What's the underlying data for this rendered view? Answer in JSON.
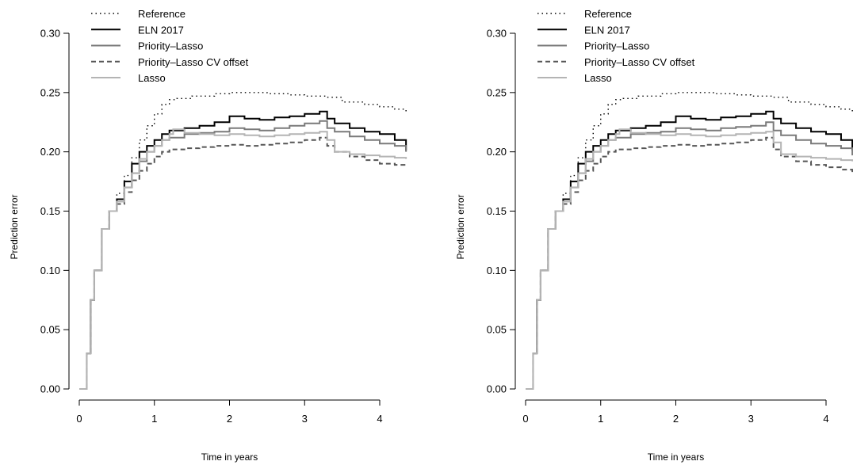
{
  "chart_data": [
    {
      "type": "line",
      "xlabel": "Time in years",
      "ylabel": "Prediction error",
      "xlim": [
        0,
        4.35
      ],
      "ylim": [
        0,
        0.3
      ],
      "xticks": [
        "0",
        "1",
        "2",
        "3",
        "4"
      ],
      "yticks": [
        "0.00",
        "0.05",
        "0.10",
        "0.15",
        "0.20",
        "0.25",
        "0.30"
      ],
      "grid": false,
      "legend_position": "top-left",
      "series": [
        {
          "name": "Reference",
          "color": "#000000",
          "style": "dotted",
          "x": [
            0,
            0.08,
            0.1,
            0.15,
            0.2,
            0.3,
            0.4,
            0.5,
            0.6,
            0.7,
            0.8,
            0.9,
            1.0,
            1.1,
            1.2,
            1.3,
            1.5,
            1.8,
            2.0,
            2.2,
            2.5,
            2.8,
            3.0,
            3.2,
            3.3,
            3.5,
            3.8,
            4.0,
            4.2,
            4.35
          ],
          "y": [
            0,
            0,
            0.03,
            0.075,
            0.1,
            0.135,
            0.15,
            0.165,
            0.18,
            0.195,
            0.21,
            0.222,
            0.232,
            0.24,
            0.244,
            0.245,
            0.247,
            0.249,
            0.25,
            0.25,
            0.249,
            0.248,
            0.247,
            0.247,
            0.246,
            0.242,
            0.24,
            0.238,
            0.236,
            0.233
          ]
        },
        {
          "name": "ELN 2017",
          "color": "#000000",
          "style": "solid",
          "x": [
            0,
            0.08,
            0.1,
            0.15,
            0.2,
            0.3,
            0.4,
            0.5,
            0.6,
            0.7,
            0.8,
            0.9,
            1.0,
            1.1,
            1.2,
            1.4,
            1.6,
            1.8,
            2.0,
            2.2,
            2.4,
            2.6,
            2.8,
            3.0,
            3.2,
            3.3,
            3.4,
            3.6,
            3.8,
            4.0,
            4.2,
            4.35
          ],
          "y": [
            0,
            0,
            0.03,
            0.075,
            0.1,
            0.135,
            0.15,
            0.16,
            0.175,
            0.19,
            0.2,
            0.205,
            0.21,
            0.215,
            0.218,
            0.22,
            0.222,
            0.225,
            0.23,
            0.228,
            0.227,
            0.229,
            0.23,
            0.232,
            0.234,
            0.228,
            0.224,
            0.22,
            0.217,
            0.215,
            0.21,
            0.201
          ]
        },
        {
          "name": "Priority–Lasso",
          "color": "#7a7a7a",
          "style": "solid",
          "x": [
            0,
            0.08,
            0.1,
            0.15,
            0.2,
            0.3,
            0.4,
            0.5,
            0.6,
            0.7,
            0.8,
            0.9,
            1.0,
            1.1,
            1.2,
            1.4,
            1.6,
            1.8,
            2.0,
            2.2,
            2.4,
            2.6,
            2.8,
            3.0,
            3.2,
            3.3,
            3.4,
            3.6,
            3.8,
            4.0,
            4.2,
            4.35
          ],
          "y": [
            0,
            0,
            0.03,
            0.075,
            0.1,
            0.135,
            0.15,
            0.158,
            0.17,
            0.182,
            0.192,
            0.2,
            0.205,
            0.21,
            0.212,
            0.215,
            0.216,
            0.217,
            0.22,
            0.219,
            0.218,
            0.22,
            0.222,
            0.224,
            0.226,
            0.22,
            0.217,
            0.213,
            0.21,
            0.207,
            0.205,
            0.2
          ]
        },
        {
          "name": "Priority–Lasso CV offset",
          "color": "#555555",
          "style": "dashed",
          "x": [
            0,
            0.08,
            0.1,
            0.15,
            0.2,
            0.3,
            0.4,
            0.5,
            0.6,
            0.7,
            0.8,
            0.9,
            1.0,
            1.1,
            1.2,
            1.4,
            1.6,
            1.8,
            2.0,
            2.2,
            2.4,
            2.6,
            2.8,
            3.0,
            3.2,
            3.3,
            3.4,
            3.6,
            3.8,
            4.0,
            4.2,
            4.35
          ],
          "y": [
            0,
            0,
            0.03,
            0.075,
            0.1,
            0.135,
            0.15,
            0.156,
            0.166,
            0.176,
            0.184,
            0.19,
            0.196,
            0.2,
            0.202,
            0.203,
            0.204,
            0.205,
            0.206,
            0.205,
            0.206,
            0.207,
            0.208,
            0.21,
            0.212,
            0.205,
            0.2,
            0.196,
            0.193,
            0.19,
            0.189,
            0.187
          ]
        },
        {
          "name": "Lasso",
          "color": "#b4b4b4",
          "style": "solid",
          "x": [
            0,
            0.08,
            0.1,
            0.15,
            0.2,
            0.3,
            0.4,
            0.5,
            0.6,
            0.7,
            0.8,
            0.9,
            1.0,
            1.1,
            1.2,
            1.25,
            1.4,
            1.6,
            1.8,
            2.0,
            2.2,
            2.4,
            2.6,
            2.8,
            3.0,
            3.2,
            3.3,
            3.4,
            3.6,
            3.8,
            4.0,
            4.2,
            4.35
          ],
          "y": [
            0,
            0,
            0.03,
            0.075,
            0.1,
            0.135,
            0.15,
            0.158,
            0.17,
            0.182,
            0.194,
            0.2,
            0.205,
            0.21,
            0.215,
            0.219,
            0.216,
            0.215,
            0.214,
            0.215,
            0.214,
            0.213,
            0.214,
            0.215,
            0.216,
            0.217,
            0.21,
            0.2,
            0.198,
            0.197,
            0.196,
            0.195,
            0.194
          ]
        }
      ]
    },
    {
      "type": "line",
      "xlabel": "Time in years",
      "ylabel": "Prediction error",
      "xlim": [
        0,
        4.35
      ],
      "ylim": [
        0,
        0.3
      ],
      "xticks": [
        "0",
        "1",
        "2",
        "3",
        "4"
      ],
      "yticks": [
        "0.00",
        "0.05",
        "0.10",
        "0.15",
        "0.20",
        "0.25",
        "0.30"
      ],
      "grid": false,
      "legend_position": "top-left",
      "series": [
        {
          "name": "Reference",
          "color": "#000000",
          "style": "dotted",
          "x": [
            0,
            0.08,
            0.1,
            0.15,
            0.2,
            0.3,
            0.4,
            0.5,
            0.6,
            0.7,
            0.8,
            0.9,
            1.0,
            1.1,
            1.2,
            1.3,
            1.5,
            1.8,
            2.0,
            2.2,
            2.5,
            2.8,
            3.0,
            3.2,
            3.3,
            3.5,
            3.8,
            4.0,
            4.2,
            4.35
          ],
          "y": [
            0,
            0,
            0.03,
            0.075,
            0.1,
            0.135,
            0.15,
            0.165,
            0.18,
            0.195,
            0.21,
            0.222,
            0.232,
            0.24,
            0.244,
            0.245,
            0.247,
            0.249,
            0.25,
            0.25,
            0.249,
            0.248,
            0.247,
            0.247,
            0.246,
            0.242,
            0.24,
            0.238,
            0.236,
            0.233
          ]
        },
        {
          "name": "ELN 2017",
          "color": "#000000",
          "style": "solid",
          "x": [
            0,
            0.08,
            0.1,
            0.15,
            0.2,
            0.3,
            0.4,
            0.5,
            0.6,
            0.7,
            0.8,
            0.9,
            1.0,
            1.1,
            1.2,
            1.4,
            1.6,
            1.8,
            2.0,
            2.2,
            2.4,
            2.6,
            2.8,
            3.0,
            3.2,
            3.3,
            3.4,
            3.6,
            3.8,
            4.0,
            4.2,
            4.35
          ],
          "y": [
            0,
            0,
            0.03,
            0.075,
            0.1,
            0.135,
            0.15,
            0.16,
            0.175,
            0.19,
            0.2,
            0.205,
            0.21,
            0.215,
            0.218,
            0.22,
            0.222,
            0.225,
            0.23,
            0.228,
            0.227,
            0.229,
            0.23,
            0.232,
            0.234,
            0.228,
            0.224,
            0.22,
            0.217,
            0.215,
            0.21,
            0.201
          ]
        },
        {
          "name": "Priority–Lasso",
          "color": "#7a7a7a",
          "style": "solid",
          "x": [
            0,
            0.08,
            0.1,
            0.15,
            0.2,
            0.3,
            0.4,
            0.5,
            0.6,
            0.7,
            0.8,
            0.9,
            1.0,
            1.1,
            1.2,
            1.4,
            1.6,
            1.8,
            2.0,
            2.2,
            2.4,
            2.6,
            2.8,
            3.0,
            3.2,
            3.3,
            3.4,
            3.6,
            3.8,
            4.0,
            4.2,
            4.35
          ],
          "y": [
            0,
            0,
            0.03,
            0.075,
            0.1,
            0.135,
            0.15,
            0.158,
            0.17,
            0.182,
            0.192,
            0.2,
            0.205,
            0.21,
            0.212,
            0.215,
            0.216,
            0.217,
            0.22,
            0.219,
            0.218,
            0.22,
            0.221,
            0.222,
            0.225,
            0.218,
            0.214,
            0.21,
            0.207,
            0.205,
            0.203,
            0.197
          ]
        },
        {
          "name": "Priority–Lasso CV offset",
          "color": "#555555",
          "style": "dashed",
          "x": [
            0,
            0.08,
            0.1,
            0.15,
            0.2,
            0.3,
            0.4,
            0.5,
            0.6,
            0.7,
            0.8,
            0.9,
            1.0,
            1.1,
            1.2,
            1.4,
            1.6,
            1.8,
            2.0,
            2.2,
            2.4,
            2.6,
            2.8,
            3.0,
            3.2,
            3.3,
            3.4,
            3.6,
            3.8,
            4.0,
            4.2,
            4.35
          ],
          "y": [
            0,
            0,
            0.03,
            0.075,
            0.1,
            0.135,
            0.15,
            0.156,
            0.166,
            0.176,
            0.184,
            0.19,
            0.196,
            0.2,
            0.202,
            0.203,
            0.204,
            0.205,
            0.206,
            0.205,
            0.206,
            0.207,
            0.208,
            0.21,
            0.212,
            0.202,
            0.196,
            0.192,
            0.189,
            0.187,
            0.185,
            0.183
          ]
        },
        {
          "name": "Lasso",
          "color": "#b4b4b4",
          "style": "solid",
          "x": [
            0,
            0.08,
            0.1,
            0.15,
            0.2,
            0.3,
            0.4,
            0.5,
            0.6,
            0.7,
            0.8,
            0.9,
            1.0,
            1.1,
            1.2,
            1.25,
            1.4,
            1.6,
            1.8,
            2.0,
            2.2,
            2.4,
            2.6,
            2.8,
            3.0,
            3.2,
            3.3,
            3.4,
            3.6,
            3.8,
            4.0,
            4.2,
            4.35
          ],
          "y": [
            0,
            0,
            0.03,
            0.075,
            0.1,
            0.135,
            0.15,
            0.158,
            0.17,
            0.182,
            0.194,
            0.2,
            0.205,
            0.21,
            0.215,
            0.219,
            0.216,
            0.215,
            0.214,
            0.215,
            0.214,
            0.213,
            0.214,
            0.215,
            0.216,
            0.217,
            0.208,
            0.198,
            0.196,
            0.195,
            0.194,
            0.193,
            0.192
          ]
        }
      ]
    }
  ]
}
